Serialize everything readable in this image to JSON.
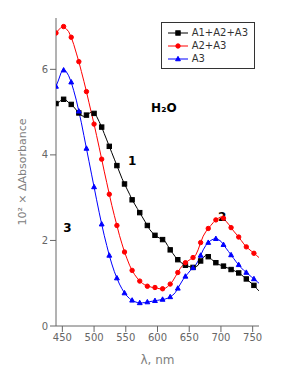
{
  "chart_data": {
    "type": "line",
    "xlabel": "λ, nm",
    "ylabel": "10² × ΔAbsorbance",
    "xlim": [
      440,
      760
    ],
    "ylim": [
      0,
      7.2
    ],
    "xticks": [
      450,
      500,
      550,
      600,
      650,
      700,
      750
    ],
    "yticks": [
      0,
      2,
      4,
      6
    ],
    "grid": false,
    "legend": "upper right",
    "x": [
      440,
      444,
      448,
      452,
      456,
      460,
      464,
      468,
      472,
      476,
      480,
      484,
      488,
      492,
      496,
      500,
      504,
      508,
      512,
      516,
      520,
      524,
      528,
      532,
      536,
      540,
      544,
      548,
      552,
      556,
      560,
      564,
      568,
      572,
      576,
      580,
      584,
      588,
      592,
      596,
      600,
      604,
      608,
      612,
      616,
      620,
      624,
      628,
      632,
      636,
      640,
      644,
      648,
      652,
      656,
      660,
      664,
      668,
      672,
      676,
      680,
      684,
      688,
      692,
      696,
      700,
      704,
      708,
      712,
      716,
      720,
      724,
      728,
      732,
      736,
      740,
      744,
      748,
      752,
      756,
      760
    ],
    "series": [
      {
        "name": "A1+A2+A3",
        "color": "black",
        "marker": "square",
        "values": [
          5.2,
          5.22,
          5.28,
          5.3,
          5.28,
          5.22,
          5.18,
          5.12,
          5.05,
          4.98,
          4.92,
          4.9,
          4.93,
          4.97,
          5.0,
          4.97,
          4.9,
          4.78,
          4.65,
          4.5,
          4.35,
          4.2,
          4.05,
          3.9,
          3.75,
          3.6,
          3.45,
          3.32,
          3.2,
          3.08,
          2.95,
          2.85,
          2.75,
          2.65,
          2.55,
          2.45,
          2.35,
          2.25,
          2.18,
          2.12,
          2.08,
          2.05,
          2.02,
          1.98,
          1.88,
          1.78,
          1.7,
          1.62,
          1.55,
          1.5,
          1.45,
          1.42,
          1.4,
          1.38,
          1.37,
          1.38,
          1.42,
          1.52,
          1.6,
          1.65,
          1.62,
          1.58,
          1.52,
          1.48,
          1.44,
          1.42,
          1.4,
          1.37,
          1.35,
          1.32,
          1.3,
          1.27,
          1.24,
          1.2,
          1.15,
          1.1,
          1.05,
          1.0,
          0.95,
          0.88,
          0.82
        ]
      },
      {
        "name": "A2+A3",
        "color": "red",
        "marker": "circle",
        "values": [
          6.85,
          6.92,
          6.98,
          7.0,
          6.95,
          6.88,
          6.75,
          6.58,
          6.38,
          6.18,
          5.95,
          5.72,
          5.48,
          5.22,
          4.97,
          4.72,
          4.45,
          4.18,
          3.9,
          3.62,
          3.35,
          3.08,
          2.82,
          2.58,
          2.35,
          2.12,
          1.92,
          1.73,
          1.57,
          1.42,
          1.3,
          1.2,
          1.12,
          1.05,
          1.0,
          0.96,
          0.93,
          0.92,
          0.9,
          0.9,
          0.88,
          0.87,
          0.87,
          0.88,
          0.92,
          0.98,
          1.05,
          1.15,
          1.25,
          1.35,
          1.42,
          1.48,
          1.52,
          1.56,
          1.6,
          1.65,
          1.78,
          1.95,
          2.1,
          2.2,
          2.28,
          2.35,
          2.42,
          2.48,
          2.52,
          2.55,
          2.52,
          2.45,
          2.38,
          2.3,
          2.22,
          2.15,
          2.08,
          2.0,
          1.92,
          1.85,
          1.8,
          1.75,
          1.7,
          1.65,
          1.6
        ]
      },
      {
        "name": "A3",
        "color": "blue",
        "marker": "triangle",
        "values": [
          5.6,
          5.75,
          5.92,
          5.98,
          5.95,
          5.85,
          5.7,
          5.5,
          5.28,
          5.02,
          4.75,
          4.45,
          4.15,
          3.85,
          3.55,
          3.25,
          2.95,
          2.66,
          2.38,
          2.12,
          1.88,
          1.65,
          1.45,
          1.27,
          1.12,
          0.98,
          0.87,
          0.77,
          0.7,
          0.64,
          0.6,
          0.57,
          0.55,
          0.54,
          0.54,
          0.55,
          0.56,
          0.57,
          0.58,
          0.59,
          0.6,
          0.61,
          0.62,
          0.63,
          0.65,
          0.68,
          0.72,
          0.78,
          0.88,
          0.98,
          1.08,
          1.16,
          1.23,
          1.3,
          1.36,
          1.42,
          1.52,
          1.65,
          1.78,
          1.88,
          1.95,
          2.0,
          2.03,
          2.04,
          2.02,
          1.98,
          1.9,
          1.82,
          1.74,
          1.66,
          1.58,
          1.5,
          1.43,
          1.36,
          1.3,
          1.25,
          1.2,
          1.15,
          1.1,
          1.05,
          1.0
        ]
      }
    ],
    "annotations": [
      {
        "text": "1",
        "x": 560,
        "y": 3.85
      },
      {
        "text": "2",
        "x": 702,
        "y": 2.55
      },
      {
        "text": "3",
        "x": 458,
        "y": 2.3
      },
      {
        "text": "H₂O",
        "x": 610,
        "y": 5.1
      }
    ]
  }
}
